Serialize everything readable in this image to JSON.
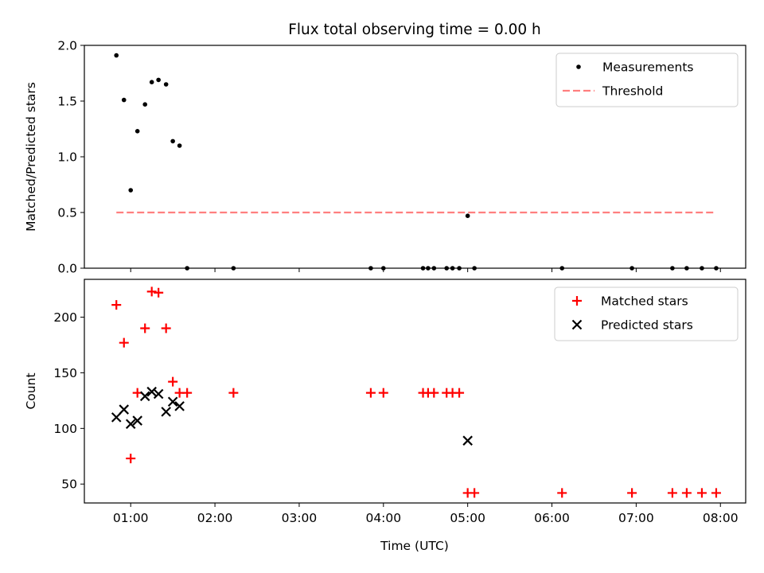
{
  "chart_data": {
    "title": "Flux total observing time = 0.00 h",
    "x_label": "Time (UTC)",
    "x_ticks": [
      {
        "value": 1,
        "label": "01:00"
      },
      {
        "value": 2,
        "label": "02:00"
      },
      {
        "value": 3,
        "label": "03:00"
      },
      {
        "value": 4,
        "label": "04:00"
      },
      {
        "value": 5,
        "label": "05:00"
      },
      {
        "value": 6,
        "label": "06:00"
      },
      {
        "value": 7,
        "label": "07:00"
      },
      {
        "value": 8,
        "label": "08:00"
      }
    ],
    "xlim": [
      0.45,
      8.3
    ],
    "panels": [
      {
        "type": "scatter",
        "ylabel": "Matched/Predicted stars",
        "ylim": [
          0,
          2.0
        ],
        "yticks": [
          0.0,
          0.5,
          1.0,
          1.5,
          2.0
        ],
        "ytick_labels": [
          "0.0",
          "0.5",
          "1.0",
          "1.5",
          "2.0"
        ],
        "legend_position": "top-right",
        "series": [
          {
            "name": "Measurements",
            "marker": "dot",
            "color": "#000000",
            "x": [
              0.83,
              0.92,
              1.0,
              1.08,
              1.17,
              1.25,
              1.33,
              1.42,
              1.5,
              1.58,
              1.67,
              2.22,
              3.85,
              4.0,
              4.47,
              4.53,
              4.6,
              4.75,
              4.82,
              4.9,
              5.0,
              5.08,
              6.12,
              6.95,
              7.43,
              7.6,
              7.78,
              7.95
            ],
            "y": [
              1.91,
              1.51,
              0.7,
              1.23,
              1.47,
              1.67,
              1.69,
              1.65,
              1.14,
              1.1,
              0.0,
              0.0,
              0.0,
              0.0,
              0.0,
              0.0,
              0.0,
              0.0,
              0.0,
              0.0,
              0.47,
              0.0,
              0.0,
              0.0,
              0.0,
              0.0,
              0.0,
              0.0
            ]
          },
          {
            "name": "Threshold",
            "type": "line",
            "style": "dashed",
            "color": "#ff7f7f",
            "x": [
              0.83,
              7.95
            ],
            "y": [
              0.5,
              0.5
            ]
          }
        ]
      },
      {
        "type": "scatter",
        "ylabel": "Count",
        "ylim": [
          33,
          234
        ],
        "yticks": [
          50,
          100,
          150,
          200
        ],
        "ytick_labels": [
          "50",
          "100",
          "150",
          "200"
        ],
        "legend_position": "top-right",
        "series": [
          {
            "name": "Matched stars",
            "marker": "plus",
            "color": "#ff0000",
            "x": [
              0.83,
              0.92,
              1.0,
              1.08,
              1.17,
              1.25,
              1.33,
              1.42,
              1.5,
              1.58,
              1.67,
              2.22,
              3.85,
              4.0,
              4.47,
              4.53,
              4.6,
              4.75,
              4.82,
              4.9,
              5.0,
              5.08,
              6.12,
              6.95,
              7.43,
              7.6,
              7.78,
              7.95
            ],
            "y": [
              211,
              177,
              73,
              132,
              190,
              223,
              222,
              190,
              142,
              132,
              132,
              132,
              132,
              132,
              132,
              132,
              132,
              132,
              132,
              132,
              42,
              42,
              42,
              42,
              42,
              42,
              42,
              42
            ]
          },
          {
            "name": "Predicted stars",
            "marker": "x",
            "color": "#000000",
            "x": [
              0.83,
              0.92,
              1.0,
              1.08,
              1.17,
              1.25,
              1.33,
              1.42,
              1.5,
              1.58,
              5.0
            ],
            "y": [
              110,
              117,
              104,
              107,
              129,
              133,
              131,
              115,
              124,
              120,
              89
            ]
          }
        ]
      }
    ]
  }
}
